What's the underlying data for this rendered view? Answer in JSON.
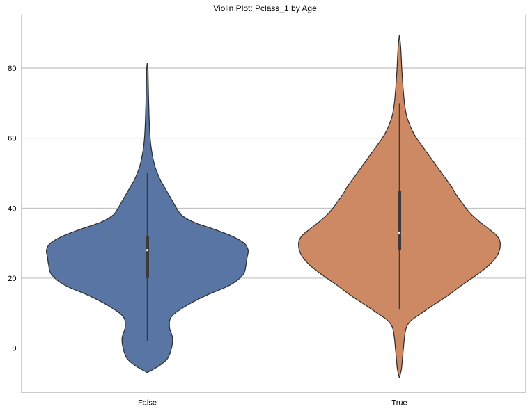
{
  "chart_data": {
    "type": "violin",
    "title": "Violin Plot: Pclass_1 by Age",
    "xlabel": "",
    "ylabel": "",
    "categories": [
      "False",
      "True"
    ],
    "ylim": [
      -12.7,
      95.2
    ],
    "yticks": [
      0,
      20,
      40,
      60,
      80
    ],
    "grid": "horizontal",
    "colors": {
      "False": "#5875a4",
      "True": "#cc8963"
    },
    "violins": [
      {
        "category": "False",
        "color": "#5875a4",
        "median": 28,
        "q1": 20,
        "q3": 32,
        "whisker_low": 2,
        "whisker_high": 50,
        "density": [
          [
            -7.0,
            0.0
          ],
          [
            -5.0,
            0.12
          ],
          [
            -3.0,
            0.2
          ],
          [
            0.0,
            0.24
          ],
          [
            3.0,
            0.25
          ],
          [
            6.0,
            0.22
          ],
          [
            9.0,
            0.24
          ],
          [
            12.0,
            0.38
          ],
          [
            15.0,
            0.58
          ],
          [
            18.0,
            0.82
          ],
          [
            21.0,
            0.95
          ],
          [
            24.0,
            0.98
          ],
          [
            26.0,
            0.99
          ],
          [
            28.0,
            1.0
          ],
          [
            30.0,
            0.96
          ],
          [
            32.0,
            0.84
          ],
          [
            34.0,
            0.66
          ],
          [
            36.0,
            0.46
          ],
          [
            38.0,
            0.34
          ],
          [
            40.0,
            0.29
          ],
          [
            42.0,
            0.25
          ],
          [
            44.0,
            0.21
          ],
          [
            46.0,
            0.17
          ],
          [
            48.0,
            0.13
          ],
          [
            50.0,
            0.1
          ],
          [
            52.0,
            0.075
          ],
          [
            54.0,
            0.058
          ],
          [
            56.0,
            0.045
          ],
          [
            58.0,
            0.035
          ],
          [
            60.0,
            0.028
          ],
          [
            63.0,
            0.022
          ],
          [
            66.0,
            0.018
          ],
          [
            69.0,
            0.015
          ],
          [
            72.0,
            0.012
          ],
          [
            75.0,
            0.01
          ],
          [
            78.0,
            0.008
          ],
          [
            80.0,
            0.006
          ],
          [
            81.5,
            0.0
          ]
        ]
      },
      {
        "category": "True",
        "color": "#cc8963",
        "median": 33,
        "q1": 28,
        "q3": 45,
        "whisker_low": 11,
        "whisker_high": 70,
        "density": [
          [
            -8.5,
            0.0
          ],
          [
            -6.0,
            0.02
          ],
          [
            -3.0,
            0.03
          ],
          [
            0.0,
            0.04
          ],
          [
            3.0,
            0.05
          ],
          [
            6.0,
            0.07
          ],
          [
            8.0,
            0.12
          ],
          [
            10.0,
            0.22
          ],
          [
            12.0,
            0.32
          ],
          [
            15.0,
            0.48
          ],
          [
            18.0,
            0.62
          ],
          [
            21.0,
            0.77
          ],
          [
            24.0,
            0.9
          ],
          [
            27.0,
            0.98
          ],
          [
            30.0,
            1.0
          ],
          [
            32.0,
            0.97
          ],
          [
            34.0,
            0.89
          ],
          [
            36.0,
            0.8
          ],
          [
            38.0,
            0.72
          ],
          [
            40.0,
            0.66
          ],
          [
            42.0,
            0.61
          ],
          [
            44.0,
            0.56
          ],
          [
            46.0,
            0.52
          ],
          [
            48.0,
            0.47
          ],
          [
            50.0,
            0.42
          ],
          [
            52.0,
            0.37
          ],
          [
            54.0,
            0.32
          ],
          [
            56.0,
            0.27
          ],
          [
            58.0,
            0.22
          ],
          [
            60.0,
            0.17
          ],
          [
            62.0,
            0.13
          ],
          [
            64.0,
            0.1
          ],
          [
            66.0,
            0.075
          ],
          [
            68.0,
            0.06
          ],
          [
            70.0,
            0.05
          ],
          [
            73.0,
            0.04
          ],
          [
            76.0,
            0.032
          ],
          [
            79.0,
            0.025
          ],
          [
            82.0,
            0.02
          ],
          [
            85.0,
            0.015
          ],
          [
            87.0,
            0.01
          ],
          [
            89.5,
            0.0
          ]
        ]
      }
    ]
  }
}
